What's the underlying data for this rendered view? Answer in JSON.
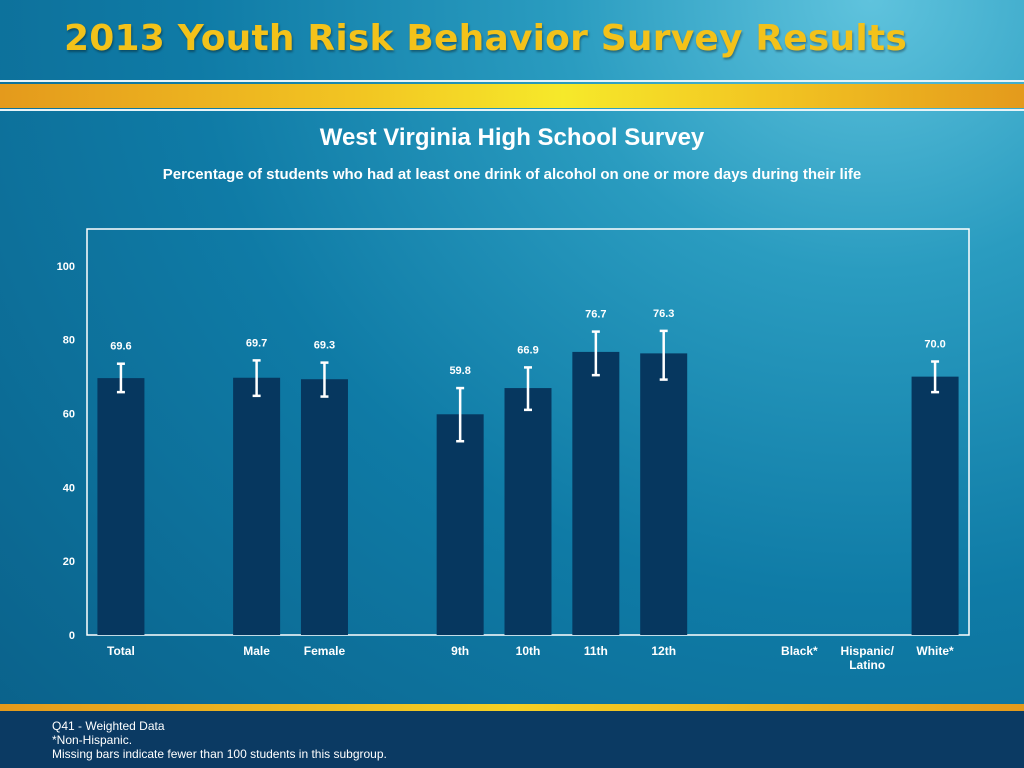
{
  "banner": {
    "title": "2013 Youth Risk Behavior Survey Results"
  },
  "colors": {
    "bar": "#06375f",
    "gold": "#f3c21a",
    "plot_border": "#ffffff",
    "text": "#ffffff"
  },
  "chart_data": {
    "type": "bar",
    "title": "West Virginia High School Survey",
    "subtitle": "Percentage of students who had at least one drink of alcohol on one or more days during their life",
    "xlabel": "",
    "ylabel": "",
    "ylim": [
      0,
      110
    ],
    "yticks": [
      0,
      20,
      40,
      60,
      80,
      100
    ],
    "grid": false,
    "categories": [
      {
        "label": [
          "Total"
        ],
        "value": 69.6,
        "value_label": "69.6",
        "ci": [
          65.8,
          73.5
        ]
      },
      {
        "label": [
          ""
        ],
        "value": null,
        "value_label": "",
        "ci": null
      },
      {
        "label": [
          "Male"
        ],
        "value": 69.7,
        "value_label": "69.7",
        "ci": [
          64.8,
          74.4
        ]
      },
      {
        "label": [
          "Female"
        ],
        "value": 69.3,
        "value_label": "69.3",
        "ci": [
          64.6,
          73.8
        ]
      },
      {
        "label": [
          ""
        ],
        "value": null,
        "value_label": "",
        "ci": null
      },
      {
        "label": [
          "9th"
        ],
        "value": 59.8,
        "value_label": "59.8",
        "ci": [
          52.5,
          66.9
        ]
      },
      {
        "label": [
          "10th"
        ],
        "value": 66.9,
        "value_label": "66.9",
        "ci": [
          61.0,
          72.5
        ]
      },
      {
        "label": [
          "11th"
        ],
        "value": 76.7,
        "value_label": "76.7",
        "ci": [
          70.4,
          82.2
        ]
      },
      {
        "label": [
          "12th"
        ],
        "value": 76.3,
        "value_label": "76.3",
        "ci": [
          69.2,
          82.4
        ]
      },
      {
        "label": [
          ""
        ],
        "value": null,
        "value_label": "",
        "ci": null
      },
      {
        "label": [
          "Black*"
        ],
        "value": null,
        "value_label": "",
        "ci": null
      },
      {
        "label": [
          "Hispanic/",
          "Latino"
        ],
        "value": null,
        "value_label": "",
        "ci": null
      },
      {
        "label": [
          "White*"
        ],
        "value": 70.0,
        "value_label": "70.0",
        "ci": [
          65.8,
          74.1
        ]
      }
    ]
  },
  "footer": {
    "source": "Q41 - Weighted Data",
    "note1": "*Non-Hispanic.",
    "note2": "Missing bars indicate fewer than 100 students in this subgroup."
  }
}
